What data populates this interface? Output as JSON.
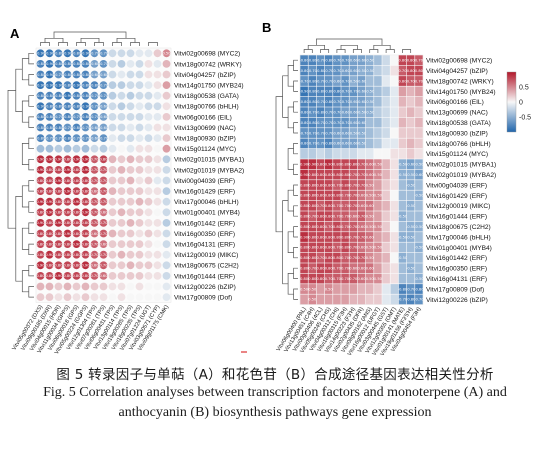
{
  "panel_a": {
    "label": "A",
    "rows": [
      "Vitvi02g00698 (MYC2)",
      "Vitvi18g00742 (WRKY)",
      "Vitvi04g04257 (bZIP)",
      "Vitvi14g01750 (MYB24)",
      "Vitvi18g00538 (GATA)",
      "Vitvi18g00766 (bHLH)",
      "Vitvi06g00166 (EIL)",
      "Vitvi13g00699 (NAC)",
      "Vitvi18g00930 (bZIP)",
      "Vitvi15g01124 (MYC)",
      "Vitvi02g01015 (MYBA1)",
      "Vitvi02g01019 (MYBA2)",
      "Vitvi00g04039 (ERF)",
      "Vitvi16g01429 (ERF)",
      "Vitvi17g00046 (bHLH)",
      "Vitvi01g00401 (MYB4)",
      "Vitvi16g01442 (ERF)",
      "Vitvi16g00350 (ERF)",
      "Vitvi16g04131 (ERF)",
      "Vitvi12g00019 (MIKC)",
      "Vitvi18g00675 (C2H2)",
      "Vitvi16g01444 (ERF)",
      "Vitvi12g00226 (bZIP)",
      "Vitvi17g00809 (Dof)"
    ],
    "cols": [
      "Vitvi05g00372 (DXS)",
      "Vitvi09g00185 (DXR)",
      "Vitvi04g00015 (HDR)",
      "Vitvi11g00034 (GPPS)",
      "Vitvi08g00018 (GPS)",
      "Vitvi05g00224 (GGPS)",
      "Vitvi12g01304 (TPS)",
      "Vitvi07g00281 (TPS)",
      "Vitvi06g00431 (TPS)",
      "Vitvi13g00114 (TPS)",
      "Vitvi19g00285 (TPS)",
      "Vitvi18g00235 (TPS)",
      "Vitvi07g01224 (UGT)",
      "Vitvi03g00571 (CYP)",
      "Vitvi09g01175 (CMK)"
    ],
    "values": [
      [
        -0.9,
        -0.9,
        -0.8,
        -0.9,
        -0.8,
        -0.9,
        -0.7,
        -0.7,
        -0.2,
        -0.2,
        -0.2,
        -0.1,
        -0.1,
        0.2,
        0.5
      ],
      [
        -0.8,
        -0.9,
        -0.8,
        -0.8,
        -0.8,
        -0.8,
        -0.6,
        -0.7,
        -0.2,
        -0.3,
        -0.1,
        -0.2,
        0.1,
        -0.1,
        0.3
      ],
      [
        -0.8,
        -0.9,
        -0.7,
        -0.8,
        -0.8,
        -0.8,
        -0.6,
        -0.6,
        -0.2,
        -0.1,
        -0.2,
        -0.2,
        0.1,
        0.1,
        0.2
      ],
      [
        -0.9,
        -0.9,
        -0.9,
        -0.8,
        -0.9,
        -0.8,
        -0.8,
        -0.7,
        -0.3,
        -0.3,
        -0.2,
        -0.2,
        -0.1,
        0.1,
        0.4
      ],
      [
        -0.8,
        -0.8,
        -0.8,
        -0.9,
        -0.8,
        -0.8,
        -0.7,
        -0.7,
        -0.3,
        -0.2,
        -0.3,
        -0.2,
        -0.2,
        -0.1,
        0.2
      ],
      [
        -0.9,
        -0.8,
        -0.8,
        -0.8,
        -0.8,
        -0.9,
        -0.7,
        -0.6,
        -0.2,
        -0.3,
        -0.2,
        -0.1,
        -0.2,
        -0.2,
        0.1
      ],
      [
        -0.8,
        -0.8,
        -0.7,
        -0.8,
        -0.7,
        -0.8,
        -0.7,
        -0.6,
        -0.2,
        -0.2,
        -0.2,
        -0.2,
        -0.1,
        -0.1,
        0.2
      ],
      [
        -0.8,
        -0.8,
        -0.8,
        -0.7,
        -0.8,
        -0.7,
        -0.6,
        -0.6,
        -0.2,
        -0.2,
        -0.1,
        -0.2,
        -0.1,
        0.1,
        0.1
      ],
      [
        -0.8,
        -0.7,
        -0.7,
        -0.8,
        -0.7,
        -0.7,
        -0.6,
        -0.7,
        -0.1,
        -0.2,
        -0.2,
        -0.1,
        -0.2,
        -0.1,
        0.2
      ],
      [
        -0.4,
        -0.4,
        -0.3,
        -0.4,
        -0.3,
        -0.4,
        -0.2,
        -0.3,
        -0.1,
        0.0,
        -0.1,
        0.1,
        0.1,
        0.0,
        0.4
      ],
      [
        0.9,
        0.9,
        0.9,
        0.8,
        0.9,
        0.9,
        0.7,
        0.8,
        0.3,
        0.2,
        0.3,
        0.2,
        0.2,
        0.1,
        -0.3
      ],
      [
        0.9,
        0.8,
        0.8,
        0.9,
        0.8,
        0.9,
        0.7,
        0.7,
        0.2,
        0.3,
        0.2,
        0.2,
        0.1,
        0.1,
        -0.2
      ],
      [
        0.8,
        0.8,
        0.9,
        0.8,
        0.8,
        0.8,
        0.7,
        0.7,
        0.2,
        0.2,
        0.3,
        0.1,
        0.2,
        -0.1,
        -0.2
      ],
      [
        0.8,
        0.8,
        0.8,
        0.9,
        0.8,
        0.8,
        0.6,
        0.7,
        0.3,
        0.2,
        0.2,
        0.2,
        0.1,
        0.1,
        -0.3
      ],
      [
        0.9,
        0.9,
        0.8,
        0.8,
        0.9,
        0.8,
        0.7,
        0.7,
        0.2,
        0.2,
        0.2,
        0.3,
        0.2,
        0.1,
        -0.2
      ],
      [
        0.8,
        0.9,
        0.8,
        0.8,
        0.8,
        0.9,
        0.7,
        0.6,
        0.2,
        0.3,
        0.2,
        0.2,
        0.1,
        0.0,
        -0.2
      ],
      [
        0.9,
        0.8,
        0.9,
        0.8,
        0.8,
        0.8,
        0.7,
        0.7,
        0.2,
        0.2,
        0.3,
        0.2,
        0.1,
        0.1,
        -0.3
      ],
      [
        0.8,
        0.8,
        0.8,
        0.9,
        0.8,
        0.8,
        0.6,
        0.7,
        0.3,
        0.2,
        0.2,
        0.1,
        0.2,
        0.1,
        -0.2
      ],
      [
        0.8,
        0.8,
        0.8,
        0.8,
        0.9,
        0.8,
        0.7,
        0.6,
        0.2,
        0.2,
        0.2,
        0.2,
        0.1,
        0.0,
        -0.2
      ],
      [
        0.8,
        0.9,
        0.8,
        0.8,
        0.8,
        0.8,
        0.7,
        0.7,
        0.2,
        0.3,
        0.2,
        0.2,
        0.1,
        0.1,
        -0.1
      ],
      [
        0.9,
        0.8,
        0.8,
        0.8,
        0.8,
        0.9,
        0.6,
        0.7,
        0.2,
        0.2,
        0.3,
        0.2,
        0.2,
        0.1,
        -0.2
      ],
      [
        0.8,
        0.8,
        0.9,
        0.8,
        0.8,
        0.8,
        0.7,
        0.6,
        0.2,
        0.2,
        0.2,
        0.2,
        0.1,
        0.1,
        -0.2
      ],
      [
        0.3,
        0.3,
        0.2,
        0.3,
        0.2,
        0.3,
        0.2,
        0.2,
        0.1,
        0.1,
        0.0,
        0.1,
        0.0,
        0.0,
        -0.1
      ],
      [
        0.2,
        0.2,
        0.1,
        0.2,
        0.1,
        0.2,
        0.1,
        0.1,
        0.0,
        0.1,
        0.0,
        0.0,
        0.0,
        0.0,
        -0.1
      ]
    ]
  },
  "panel_b": {
    "label": "B",
    "rows": [
      "Vitvi02g00698 (MYC2)",
      "Vitvi04g04257 (bZIP)",
      "Vitvi18g00742 (WRKY)",
      "Vitvi14g01750 (MYB24)",
      "Vitvi06g00166 (EIL)",
      "Vitvi13g00699 (NAC)",
      "Vitvi18g00538 (GATA)",
      "Vitvi18g00930 (bZIP)",
      "Vitvi18g00766 (bHLH)",
      "Vitvi15g01124 (MYC)",
      "Vitvi02g01015 (MYBA1)",
      "Vitvi02g01019 (MYBA2)",
      "Vitvi00g04039 (ERF)",
      "Vitvi16g01429 (ERF)",
      "Vitvi12g00019 (MIKC)",
      "Vitvi16g01444 (ERF)",
      "Vitvi18g00675 (C2H2)",
      "Vitvi17g00046 (bHLH)",
      "Vitvi01g00401 (MYB4)",
      "Vitvi16g01442 (ERF)",
      "Vitvi16g00350 (ERF)",
      "Vitvi16g04131 (ERF)",
      "Vitvi17g00809 (Dof)",
      "Vitvi12g00226 (bZIP)"
    ],
    "cols": [
      "Vitvi06g00400 (PAL)",
      "Vitvi13g00451 (C4H)",
      "Vitvi00g00406 (4CL)",
      "Vitvi05g00245 (CHS)",
      "Vitvi04g00312 (CHI)",
      "Vitvi18g00315 (F3H)",
      "Vitvi14g00223 (F3'H)",
      "Vitvi02g00435 (DFR)",
      "Vitvi08g00162 (ANS)",
      "Vitvi16g00012 (UFGT)",
      "Vitvi03g00445 (GST)",
      "Vitvi12g00355 (OMT)",
      "Vitvi01g00141 (MATE)",
      "Vitvi19g01156 (F3'5'H)",
      "Vitvi04g00454 (F3H)"
    ],
    "values": [
      [
        -0.8,
        -0.8,
        -0.7,
        -0.8,
        -0.7,
        -0.7,
        -0.6,
        -0.6,
        -0.5,
        -0.4,
        -0.2,
        0.0,
        0.8,
        0.8,
        0.7
      ],
      [
        -0.8,
        -0.7,
        -0.8,
        -0.7,
        -0.7,
        -0.6,
        -0.6,
        -0.5,
        -0.5,
        -0.3,
        -0.2,
        0.1,
        0.7,
        0.8,
        0.8
      ],
      [
        -0.7,
        -0.8,
        -0.7,
        -0.7,
        -0.6,
        -0.7,
        -0.5,
        -0.6,
        -0.4,
        -0.4,
        -0.1,
        0.0,
        0.8,
        0.7,
        0.7
      ],
      [
        -0.9,
        -0.8,
        -0.8,
        -0.8,
        -0.8,
        -0.7,
        -0.7,
        -0.6,
        -0.5,
        -0.4,
        -0.3,
        -0.1,
        0.4,
        0.3,
        0.4
      ],
      [
        -0.8,
        -0.8,
        -0.7,
        -0.8,
        -0.7,
        -0.7,
        -0.6,
        -0.6,
        -0.5,
        -0.4,
        -0.2,
        -0.1,
        0.3,
        0.2,
        0.3
      ],
      [
        -0.8,
        -0.7,
        -0.8,
        -0.7,
        -0.7,
        -0.6,
        -0.6,
        -0.5,
        -0.5,
        -0.3,
        -0.2,
        -0.1,
        0.2,
        0.3,
        0.2
      ],
      [
        -0.8,
        -0.8,
        -0.7,
        -0.7,
        -0.7,
        -0.7,
        -0.6,
        -0.6,
        -0.4,
        -0.4,
        -0.2,
        -0.1,
        0.3,
        0.2,
        0.3
      ],
      [
        -0.7,
        -0.7,
        -0.7,
        -0.7,
        -0.6,
        -0.6,
        -0.5,
        -0.5,
        -0.4,
        -0.3,
        -0.2,
        0.0,
        0.2,
        0.2,
        0.2
      ],
      [
        -0.8,
        -0.7,
        -0.7,
        -0.8,
        -0.6,
        -0.6,
        -0.6,
        -0.5,
        -0.4,
        -0.3,
        -0.1,
        -0.1,
        0.2,
        0.3,
        0.2
      ],
      [
        -0.3,
        -0.3,
        -0.2,
        -0.3,
        -0.2,
        -0.2,
        -0.2,
        -0.1,
        -0.1,
        0.0,
        0.0,
        0.1,
        0.1,
        0.2,
        0.1
      ],
      [
        0.9,
        0.9,
        0.8,
        0.9,
        0.8,
        0.8,
        0.8,
        0.7,
        0.6,
        0.5,
        0.3,
        0.1,
        -0.5,
        -0.6,
        -0.5
      ],
      [
        0.9,
        0.8,
        0.8,
        0.8,
        0.8,
        0.8,
        0.7,
        0.7,
        0.6,
        0.5,
        0.3,
        0.1,
        -0.5,
        -0.5,
        -0.6
      ],
      [
        0.8,
        0.8,
        0.8,
        0.8,
        0.7,
        0.8,
        0.7,
        0.7,
        0.5,
        0.4,
        0.2,
        0.1,
        -0.4,
        -0.5,
        -0.4
      ],
      [
        0.8,
        0.8,
        0.8,
        0.8,
        0.8,
        0.7,
        0.7,
        0.6,
        0.5,
        0.5,
        0.2,
        0.0,
        -0.4,
        -0.4,
        -0.5
      ],
      [
        0.8,
        0.8,
        0.7,
        0.8,
        0.7,
        0.7,
        0.7,
        0.6,
        0.6,
        0.4,
        0.3,
        0.1,
        -0.4,
        -0.5,
        -0.4
      ],
      [
        0.8,
        0.7,
        0.8,
        0.8,
        0.7,
        0.7,
        0.6,
        0.7,
        0.5,
        0.4,
        0.2,
        0.1,
        -0.5,
        -0.4,
        -0.4
      ],
      [
        0.8,
        0.8,
        0.8,
        0.7,
        0.8,
        0.7,
        0.7,
        0.6,
        0.5,
        0.5,
        0.2,
        0.0,
        -0.4,
        -0.5,
        -0.5
      ],
      [
        0.9,
        0.8,
        0.8,
        0.8,
        0.8,
        0.8,
        0.7,
        0.7,
        0.6,
        0.4,
        0.3,
        0.1,
        -0.5,
        -0.5,
        -0.4
      ],
      [
        0.8,
        0.8,
        0.8,
        0.8,
        0.7,
        0.8,
        0.7,
        0.6,
        0.5,
        0.5,
        0.2,
        0.1,
        -0.4,
        -0.4,
        -0.5
      ],
      [
        0.8,
        0.8,
        0.7,
        0.8,
        0.8,
        0.7,
        0.7,
        0.7,
        0.5,
        0.4,
        0.3,
        0.0,
        -0.5,
        -0.4,
        -0.4
      ],
      [
        0.8,
        0.7,
        0.8,
        0.8,
        0.7,
        0.7,
        0.6,
        0.6,
        0.6,
        0.4,
        0.2,
        0.1,
        -0.4,
        -0.5,
        -0.4
      ],
      [
        0.8,
        0.8,
        0.8,
        0.7,
        0.7,
        0.7,
        0.7,
        0.6,
        0.5,
        0.5,
        0.2,
        0.1,
        -0.4,
        -0.4,
        -0.5
      ],
      [
        0.5,
        0.5,
        0.4,
        0.5,
        0.4,
        0.4,
        0.4,
        0.3,
        0.3,
        0.2,
        -0.1,
        -0.3,
        -0.8,
        -0.7,
        -0.8
      ],
      [
        0.4,
        0.5,
        0.4,
        0.4,
        0.4,
        0.4,
        0.3,
        0.3,
        0.2,
        0.2,
        -0.1,
        -0.2,
        -0.7,
        -0.8,
        -0.7
      ]
    ]
  },
  "legend": {
    "ticks": [
      "0.5",
      "0",
      "-0.5"
    ],
    "tick_values": [
      0.5,
      0,
      -0.5
    ]
  },
  "colors": {
    "positive": "#b2182b",
    "neutral": "#f7f7f7",
    "negative": "#2166ac",
    "tree": "#555555"
  },
  "caption": {
    "chinese": "图 5  转录因子与单萜（A）和花色苷（B）合成途径基因表达相关性分析",
    "english_line1": "Fig. 5 Correlation analyses between transcription factors and monoterpene (A) and",
    "english_line2": "anthocyanin (B) biosynthesis pathways gene expression"
  }
}
